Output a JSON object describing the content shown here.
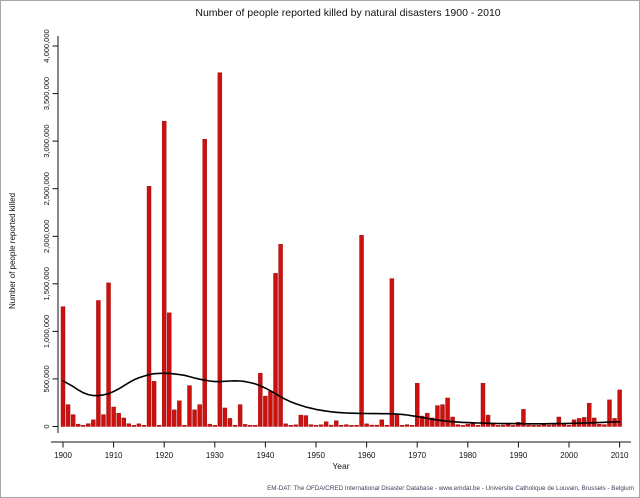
{
  "footer": {
    "source_text": "EM-DAT: The OFDA/CRED International Disaster Database - www.emdat.be - Universite Catholique de Louvain, Brussels - Belgium"
  },
  "chart_data": {
    "type": "bar",
    "title": "Number of people reported killed by natural disasters 1900 - 2010",
    "xlabel": "Year",
    "ylabel": "Number of people reported killed",
    "ylim": [
      0,
      4000000
    ],
    "grid": "off",
    "legend": "none",
    "bar_color": "#cc1111",
    "bar_edge_color": "#990000",
    "trend_line_color": "#000000",
    "x_ticks": [
      1900,
      1910,
      1920,
      1930,
      1940,
      1950,
      1960,
      1970,
      1980,
      1990,
      2000,
      2010
    ],
    "y_ticks": [
      {
        "value": 0,
        "label": "0"
      },
      {
        "value": 500000,
        "label": "500,000"
      },
      {
        "value": 1000000,
        "label": "1,000,000"
      },
      {
        "value": 1500000,
        "label": "1,500,000"
      },
      {
        "value": 2000000,
        "label": "2,000,000"
      },
      {
        "value": 2500000,
        "label": "2,500,000"
      },
      {
        "value": 3000000,
        "label": "3,000,000"
      },
      {
        "value": 3500000,
        "label": "3,500,000"
      },
      {
        "value": 4000000,
        "label": "4,000,000"
      }
    ],
    "years": [
      1900,
      1901,
      1902,
      1903,
      1904,
      1905,
      1906,
      1907,
      1908,
      1909,
      1910,
      1911,
      1912,
      1913,
      1914,
      1915,
      1916,
      1917,
      1918,
      1919,
      1920,
      1921,
      1922,
      1923,
      1924,
      1925,
      1926,
      1927,
      1928,
      1929,
      1930,
      1931,
      1932,
      1933,
      1934,
      1935,
      1936,
      1937,
      1938,
      1939,
      1940,
      1941,
      1942,
      1943,
      1944,
      1945,
      1946,
      1947,
      1948,
      1949,
      1950,
      1951,
      1952,
      1953,
      1954,
      1955,
      1956,
      1957,
      1958,
      1959,
      1960,
      1961,
      1962,
      1963,
      1964,
      1965,
      1966,
      1967,
      1968,
      1969,
      1970,
      1971,
      1972,
      1973,
      1974,
      1975,
      1976,
      1977,
      1978,
      1979,
      1980,
      1981,
      1982,
      1983,
      1984,
      1985,
      1986,
      1987,
      1988,
      1989,
      1990,
      1991,
      1992,
      1993,
      1994,
      1995,
      1996,
      1997,
      1998,
      1999,
      2000,
      2001,
      2002,
      2003,
      2004,
      2005,
      2006,
      2007,
      2008,
      2009,
      2010
    ],
    "deaths": [
      1260000,
      230000,
      125000,
      25000,
      8000,
      30000,
      70000,
      1325000,
      125000,
      1510000,
      205000,
      140000,
      90000,
      30000,
      8000,
      28000,
      8000,
      2525000,
      475000,
      8000,
      3210000,
      1195000,
      175000,
      270000,
      12000,
      430000,
      175000,
      230000,
      3020000,
      25000,
      10000,
      3720000,
      195000,
      85000,
      12000,
      230000,
      22000,
      10000,
      8000,
      560000,
      320000,
      370000,
      1610000,
      1915000,
      28000,
      10000,
      18000,
      120000,
      115000,
      20000,
      12000,
      18000,
      50000,
      15000,
      60000,
      10000,
      20000,
      12000,
      8000,
      2010000,
      28000,
      15000,
      15000,
      70000,
      10000,
      1555000,
      125000,
      10000,
      20000,
      10000,
      455000,
      110000,
      140000,
      90000,
      220000,
      230000,
      300000,
      100000,
      20000,
      12000,
      25000,
      30000,
      12000,
      455000,
      120000,
      25000,
      12000,
      15000,
      30000,
      12000,
      45000,
      180000,
      15000,
      12000,
      12000,
      25000,
      15000,
      18000,
      100000,
      35000,
      12000,
      70000,
      85000,
      95000,
      245000,
      90000,
      25000,
      20000,
      280000,
      85000,
      385000
    ],
    "trend_line": {
      "name": "smoothed-average",
      "values": [
        480000,
        450000,
        420000,
        385000,
        355000,
        335000,
        325000,
        325000,
        332000,
        345000,
        368000,
        395000,
        428000,
        460000,
        490000,
        512000,
        530000,
        545000,
        555000,
        558000,
        560000,
        558000,
        553000,
        546000,
        538000,
        525000,
        510000,
        497000,
        487000,
        478000,
        472000,
        472000,
        475000,
        478000,
        480000,
        478000,
        472000,
        462000,
        448000,
        428000,
        404000,
        375000,
        345000,
        312000,
        285000,
        260000,
        240000,
        222000,
        205000,
        192000,
        180000,
        170000,
        162000,
        155000,
        149000,
        145000,
        142000,
        140000,
        139000,
        138000,
        137000,
        136000,
        136000,
        135000,
        135000,
        134000,
        131000,
        127000,
        121000,
        113000,
        104000,
        95000,
        85000,
        76000,
        68000,
        61000,
        55000,
        50000,
        46000,
        43000,
        41000,
        39000,
        37000,
        36000,
        34000,
        33000,
        32000,
        31000,
        30000,
        30000,
        29000,
        29000,
        28000,
        28000,
        28000,
        28000,
        29000,
        30000,
        31000,
        32000,
        33000,
        34000,
        35000,
        37000,
        38000,
        40000,
        42000,
        44000,
        46000,
        48000,
        50000
      ]
    }
  }
}
